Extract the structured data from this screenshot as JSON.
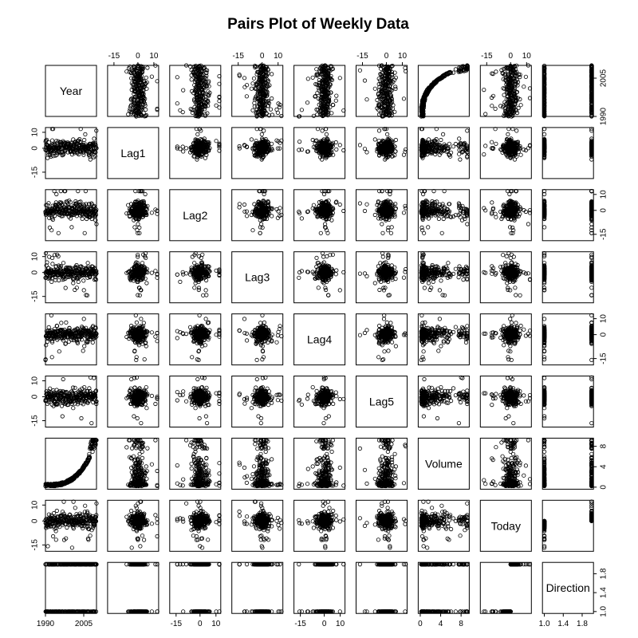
{
  "chart_data": {
    "type": "scatter",
    "subtype": "pairs-matrix",
    "title": "Pairs Plot of Weekly Data",
    "variables": [
      {
        "name": "Year",
        "range": [
          1990,
          2010
        ],
        "ticks": [
          1990,
          2005
        ],
        "tick_labels": [
          "1990",
          "2005"
        ],
        "distribution": "year"
      },
      {
        "name": "Lag1",
        "range": [
          -19,
          13
        ],
        "ticks": [
          -15,
          0,
          10
        ],
        "tick_labels": [
          "-15",
          "0",
          "10"
        ],
        "distribution": "lag"
      },
      {
        "name": "Lag2",
        "range": [
          -19,
          13
        ],
        "ticks": [
          -15,
          0,
          10
        ],
        "tick_labels": [
          "-15",
          "0",
          "10"
        ],
        "distribution": "lag"
      },
      {
        "name": "Lag3",
        "range": [
          -19,
          13
        ],
        "ticks": [
          -15,
          0,
          10
        ],
        "tick_labels": [
          "-15",
          "0",
          "10"
        ],
        "distribution": "lag"
      },
      {
        "name": "Lag4",
        "range": [
          -19,
          13
        ],
        "ticks": [
          -15,
          0,
          10
        ],
        "tick_labels": [
          "-15",
          "0",
          "10"
        ],
        "distribution": "lag"
      },
      {
        "name": "Lag5",
        "range": [
          -19,
          13
        ],
        "ticks": [
          -15,
          0,
          10
        ],
        "tick_labels": [
          "-15",
          "0",
          "10"
        ],
        "distribution": "lag"
      },
      {
        "name": "Volume",
        "range": [
          -0.4,
          9.6
        ],
        "ticks": [
          0,
          4,
          8
        ],
        "tick_labels": [
          "0",
          "4",
          "8"
        ],
        "distribution": "volume"
      },
      {
        "name": "Today",
        "range": [
          -19,
          13
        ],
        "ticks": [
          -15,
          0,
          10
        ],
        "tick_labels": [
          "-15",
          "0",
          "10"
        ],
        "distribution": "lag"
      },
      {
        "name": "Direction",
        "range": [
          0.96,
          2.04
        ],
        "ticks": [
          1.0,
          1.4,
          1.8
        ],
        "tick_labels": [
          "1.0",
          "1.4",
          "1.8"
        ],
        "distribution": "binary"
      }
    ],
    "top_axis_columns": [
      "Lag1",
      "Lag3",
      "Lag5",
      "Today"
    ],
    "bottom_axis_columns": [
      "Year",
      "Lag2",
      "Lag4",
      "Volume",
      "Direction"
    ],
    "left_axis_rows": [
      "Lag1",
      "Lag3",
      "Lag5",
      "Today"
    ],
    "right_axis_rows": [
      "Year",
      "Lag2",
      "Lag4",
      "Volume",
      "Direction"
    ],
    "n_observations": 1089,
    "point_marker": "open-circle",
    "grid": false,
    "legend": "none"
  }
}
